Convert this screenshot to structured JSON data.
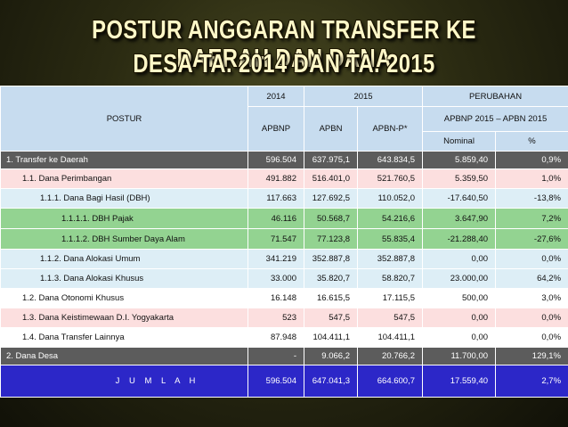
{
  "title": {
    "line1": "POSTUR ANGGARAN TRANSFER KE DAERAH DAN DANA",
    "line2": "DESA TA. 2014 DAN TA. 2015"
  },
  "table": {
    "headers": {
      "postur": "POSTUR",
      "y2014": "2014",
      "y2015": "2015",
      "perubahan": "PERUBAHAN",
      "apbnp": "APBNP",
      "apbn": "APBN",
      "apbnp_star": "APBN-P*",
      "apbnp_vs_apbn": "APBNP 2015 – APBN 2015",
      "nominal": "Nominal",
      "percent": "%"
    },
    "rows": [
      {
        "label": "1.   Transfer ke Daerah",
        "v2014": "596.504",
        "apbn": "637.975,1",
        "apbnp": "643.834,5",
        "nominal": "5.859,40",
        "pct": "0,9%"
      },
      {
        "label": "1.1.  Dana Perimbangan",
        "v2014": "491.882",
        "apbn": "516.401,0",
        "apbnp": "521.760,5",
        "nominal": "5.359,50",
        "pct": "1,0%"
      },
      {
        "label": "1.1.1.  Dana Bagi Hasil (DBH)",
        "v2014": "117.663",
        "apbn": "127.692,5",
        "apbnp": "110.052,0",
        "nominal": "-17.640,50",
        "pct": "-13,8%"
      },
      {
        "label": "1.1.1.1.  DBH Pajak",
        "v2014": "46.116",
        "apbn": "50.568,7",
        "apbnp": "54.216,6",
        "nominal": "3.647,90",
        "pct": "7,2%"
      },
      {
        "label": "1.1.1.2.  DBH Sumber Daya Alam",
        "v2014": "71.547",
        "apbn": "77.123,8",
        "apbnp": "55.835,4",
        "nominal": "-21.288,40",
        "pct": "-27,6%"
      },
      {
        "label": "1.1.2.  Dana Alokasi Umum",
        "v2014": "341.219",
        "apbn": "352.887,8",
        "apbnp": "352.887,8",
        "nominal": "0,00",
        "pct": "0,0%"
      },
      {
        "label": "1.1.3.  Dana Alokasi Khusus",
        "v2014": "33.000",
        "apbn": "35.820,7",
        "apbnp": "58.820,7",
        "nominal": "23.000,00",
        "pct": "64,2%"
      },
      {
        "label": "1.2.  Dana Otonomi Khusus",
        "v2014": "16.148",
        "apbn": "16.615,5",
        "apbnp": "17.115,5",
        "nominal": "500,00",
        "pct": "3,0%"
      },
      {
        "label": "1.3.  Dana Keistimewaan  D.I. Yogyakarta",
        "v2014": "523",
        "apbn": "547,5",
        "apbnp": "547,5",
        "nominal": "0,00",
        "pct": "0,0%"
      },
      {
        "label": "1.4.  Dana Transfer Lainnya",
        "v2014": "87.948",
        "apbn": "104.411,1",
        "apbnp": "104.411,1",
        "nominal": "0,00",
        "pct": "0,0%"
      },
      {
        "label": "2.   Dana Desa",
        "v2014": "-",
        "apbn": "9.066,2",
        "apbnp": "20.766,2",
        "nominal": "11.700,00",
        "pct": "129,1%"
      },
      {
        "label": "J U M L A H",
        "v2014": "596.504",
        "apbn": "647.041,3",
        "apbnp": "664.600,7",
        "nominal": "17.559,40",
        "pct": "2,7%"
      }
    ]
  },
  "colors": {
    "header_bg": "#c7dcef",
    "dark_row": "#5c5c5c",
    "pink_row": "#fcdfdf",
    "light_blue_row": "#ddeef6",
    "green_row": "#93d391",
    "total_row": "#2c27c8"
  }
}
